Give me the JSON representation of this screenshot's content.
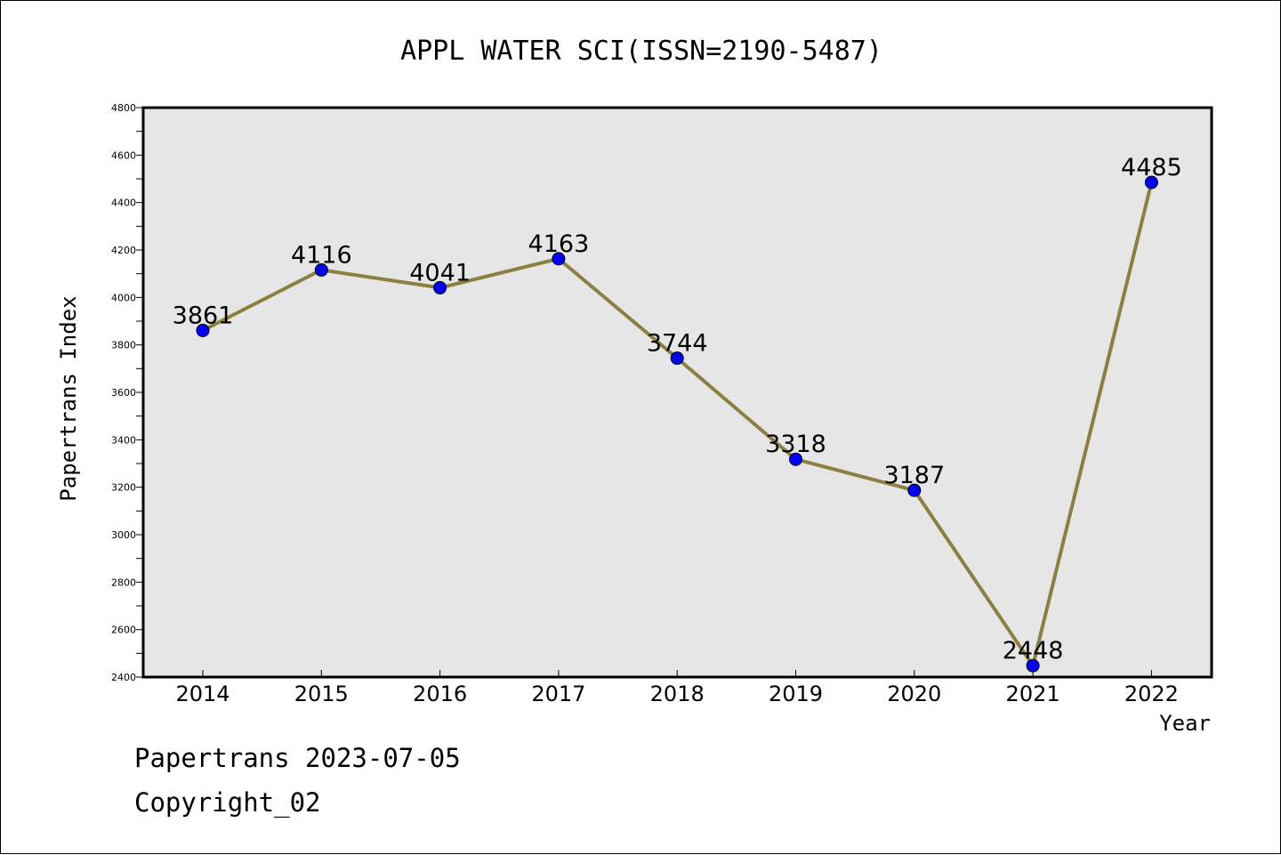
{
  "chart_data": {
    "type": "line",
    "title": "APPL WATER SCI(ISSN=2190-5487)",
    "xlabel": "Year",
    "ylabel": "Papertrans Index",
    "categories": [
      "2014",
      "2015",
      "2016",
      "2017",
      "2018",
      "2019",
      "2020",
      "2021",
      "2022"
    ],
    "series": [
      {
        "values": [
          3861,
          4116,
          4041,
          4163,
          3744,
          3318,
          3187,
          2448,
          4485
        ]
      }
    ],
    "data_labels": [
      "3861",
      "4116",
      "4041",
      "4163",
      "3744",
      "3318",
      "3187",
      "2448",
      "4485"
    ],
    "ylim": [
      2400,
      4800
    ],
    "yticks": [
      2400,
      2600,
      2800,
      3000,
      3200,
      3400,
      3600,
      3800,
      4000,
      4200,
      4400,
      4600,
      4800
    ],
    "grid": false,
    "colors": {
      "plot_background": "#e6e6e6",
      "line": "#8b8040",
      "marker": "#0000ff"
    }
  },
  "footer": {
    "line1": "Papertrans 2023-07-05",
    "line2": "Copyright_02"
  }
}
